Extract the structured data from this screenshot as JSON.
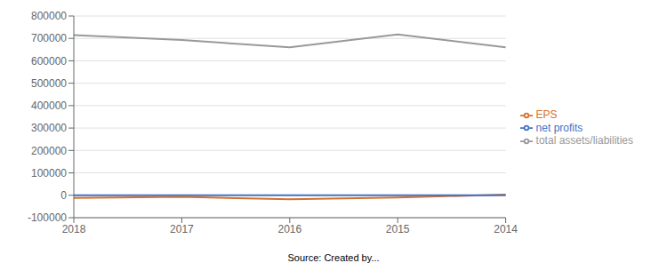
{
  "chart_data": {
    "type": "line",
    "categories": [
      "2018",
      "2017",
      "2016",
      "2015",
      "2014"
    ],
    "series": [
      {
        "name": "total assets/liabilities",
        "color": "#999999",
        "values": [
          715000,
          693000,
          660000,
          718000,
          660000
        ]
      },
      {
        "name": "EPS",
        "color": "#d4702a",
        "values": [
          -12000,
          -7000,
          -18000,
          -10000,
          3000
        ]
      },
      {
        "name": "net profits",
        "color": "#4472c4",
        "values": [
          0,
          0,
          0,
          0,
          0
        ]
      }
    ],
    "ylim": [
      -100000,
      800000
    ],
    "yticks": [
      -100000,
      0,
      100000,
      200000,
      300000,
      400000,
      500000,
      600000,
      700000,
      800000
    ],
    "grid": true,
    "legend": "right",
    "annotation": "Source: Created by..."
  }
}
